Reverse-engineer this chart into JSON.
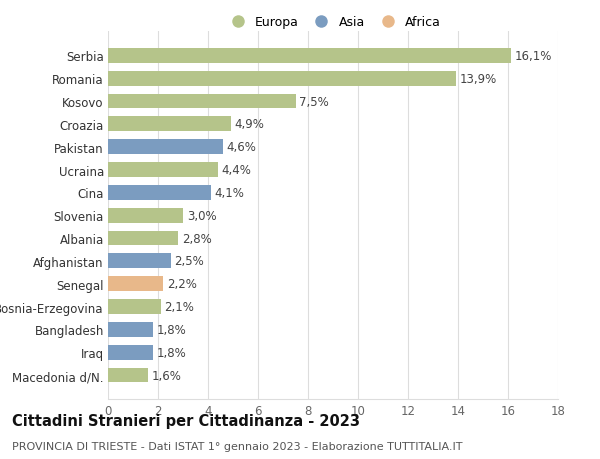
{
  "categories": [
    "Macedonia d/N.",
    "Iraq",
    "Bangladesh",
    "Bosnia-Erzegovina",
    "Senegal",
    "Afghanistan",
    "Albania",
    "Slovenia",
    "Cina",
    "Ucraina",
    "Pakistan",
    "Croazia",
    "Kosovo",
    "Romania",
    "Serbia"
  ],
  "values": [
    1.6,
    1.8,
    1.8,
    2.1,
    2.2,
    2.5,
    2.8,
    3.0,
    4.1,
    4.4,
    4.6,
    4.9,
    7.5,
    13.9,
    16.1
  ],
  "continents": [
    "Europa",
    "Asia",
    "Asia",
    "Europa",
    "Africa",
    "Asia",
    "Europa",
    "Europa",
    "Asia",
    "Europa",
    "Asia",
    "Europa",
    "Europa",
    "Europa",
    "Europa"
  ],
  "colors": {
    "Europa": "#b5c48a",
    "Asia": "#7b9cc0",
    "Africa": "#e8b88a"
  },
  "xlim": [
    0,
    18
  ],
  "xticks": [
    0,
    2,
    4,
    6,
    8,
    10,
    12,
    14,
    16,
    18
  ],
  "title": "Cittadini Stranieri per Cittadinanza - 2023",
  "subtitle": "PROVINCIA DI TRIESTE - Dati ISTAT 1° gennaio 2023 - Elaborazione TUTTITALIA.IT",
  "title_fontsize": 10.5,
  "subtitle_fontsize": 8,
  "bar_height": 0.65,
  "background_color": "#ffffff",
  "grid_color": "#dddddd",
  "label_fontsize": 8.5,
  "tick_fontsize": 8.5,
  "legend_labels": [
    "Europa",
    "Asia",
    "Africa"
  ]
}
